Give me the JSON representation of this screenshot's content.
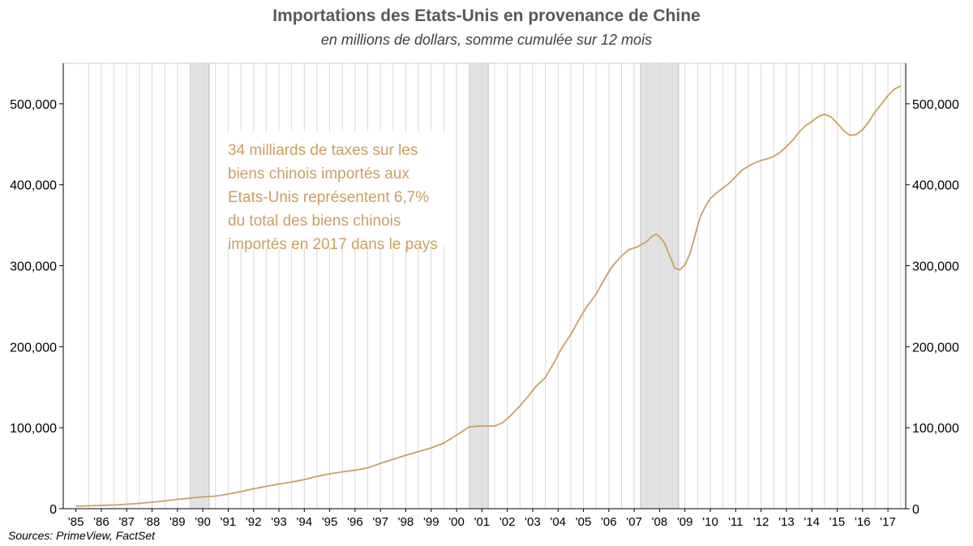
{
  "colors": {
    "line": "#C9A063",
    "annotation": "#C9A063",
    "recession": "#E2E2E2",
    "grid": "#D9D9D9",
    "axis": "#000000"
  },
  "chart_data": {
    "type": "line",
    "title": "Importations des Etats-Unis en provenance de Chine",
    "subtitle": "en millions de dollars, somme cumulée sur 12 mois",
    "source": "Sources: PrimeView, FactSet",
    "annotation": [
      "34 milliards de taxes sur les",
      "biens chinois importés aux",
      "Etats-Unis représentent 6,7%",
      "du total des biens chinois",
      "importés en 2017 dans le pays"
    ],
    "x_ticks": [
      "'85",
      "'86",
      "'87",
      "'88",
      "'89",
      "'90",
      "'91",
      "'92",
      "'93",
      "'94",
      "'95",
      "'96",
      "'97",
      "'98",
      "'99",
      "'00",
      "'01",
      "'02",
      "'03",
      "'04",
      "'05",
      "'06",
      "'07",
      "'08",
      "'09",
      "'10",
      "'11",
      "'12",
      "'13",
      "'14",
      "'15",
      "'16",
      "'17"
    ],
    "y_ticks": [
      "0",
      "100,000",
      "200,000",
      "300,000",
      "400,000",
      "500,000"
    ],
    "xlim": [
      1985.0,
      2018.2
    ],
    "ylim": [
      0,
      550000
    ],
    "grid": "vertical",
    "recessions": [
      [
        1990.0,
        1990.75
      ],
      [
        2001.0,
        2001.75
      ],
      [
        2007.75,
        2009.25
      ]
    ],
    "series": [
      {
        "x": [
          1985.5,
          1986.0,
          1986.5,
          1987.0,
          1987.5,
          1988.0,
          1988.5,
          1989.0,
          1989.5,
          1990.0,
          1990.5,
          1991.0,
          1991.5,
          1992.0,
          1992.5,
          1993.0,
          1993.5,
          1994.0,
          1994.5,
          1995.0,
          1995.5,
          1996.0,
          1996.5,
          1997.0,
          1997.5,
          1998.0,
          1998.5,
          1999.0,
          1999.5,
          2000.0,
          2000.3,
          2000.6,
          2001.0,
          2001.4,
          2001.7,
          2002.0,
          2002.3,
          2002.6,
          2003.0,
          2003.3,
          2003.6,
          2004.0,
          2004.3,
          2004.6,
          2005.0,
          2005.3,
          2005.6,
          2006.0,
          2006.3,
          2006.6,
          2007.0,
          2007.3,
          2007.6,
          2008.0,
          2008.2,
          2008.35,
          2008.5,
          2008.7,
          2008.9,
          2009.1,
          2009.3,
          2009.5,
          2009.7,
          2009.9,
          2010.1,
          2010.3,
          2010.5,
          2010.75,
          2011.0,
          2011.25,
          2011.5,
          2011.75,
          2012.0,
          2012.25,
          2012.5,
          2012.75,
          2013.0,
          2013.25,
          2013.5,
          2013.75,
          2014.0,
          2014.25,
          2014.5,
          2014.75,
          2015.0,
          2015.25,
          2015.5,
          2015.75,
          2016.0,
          2016.25,
          2016.5,
          2016.75,
          2017.0,
          2017.25,
          2017.5,
          2017.75,
          2018.0
        ],
        "y": [
          3000,
          3500,
          4000,
          4500,
          5500,
          6500,
          8000,
          9500,
          11500,
          13000,
          14500,
          15500,
          18000,
          21000,
          24500,
          27500,
          30500,
          33000,
          36000,
          40000,
          43000,
          45500,
          47500,
          50500,
          56000,
          61000,
          66000,
          70500,
          75000,
          81000,
          87000,
          93000,
          101000,
          102000,
          102000,
          102000,
          106000,
          114000,
          127000,
          138000,
          150000,
          162000,
          178000,
          196000,
          215000,
          232000,
          248000,
          265000,
          282000,
          298000,
          312000,
          320000,
          323000,
          330000,
          336000,
          339000,
          336000,
          328000,
          312000,
          297000,
          295000,
          301000,
          315000,
          338000,
          360000,
          373000,
          383000,
          390000,
          396000,
          402000,
          410000,
          418000,
          423000,
          427000,
          430000,
          432000,
          435000,
          440000,
          447000,
          455000,
          465000,
          473000,
          478000,
          484000,
          487000,
          484000,
          476000,
          467000,
          461000,
          462000,
          468000,
          478000,
          490000,
          500000,
          510000,
          518000,
          522000
        ]
      }
    ]
  }
}
